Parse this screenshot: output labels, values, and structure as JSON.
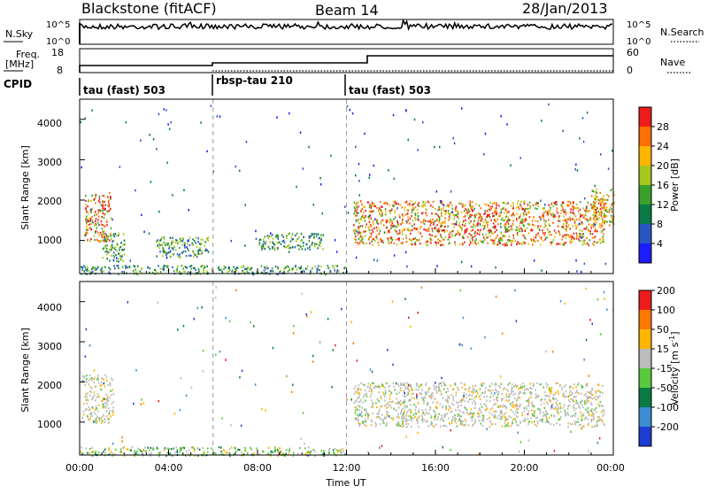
{
  "header": {
    "station": "Blackstone (fitACF)",
    "beam": "Beam 14",
    "date": "28/Jan/2013"
  },
  "nsky_panel": {
    "label": "N.Sky",
    "left_ticks": [
      "10^5",
      "10^0"
    ],
    "right_label": "N.Search",
    "right_ticks": [
      "10^5",
      "10^0"
    ]
  },
  "freq_panel": {
    "label_line1": "Freq.",
    "label_line2": "[MHz]",
    "left_ticks": [
      "18",
      "8"
    ],
    "right_label": "Nave",
    "right_ticks": [
      "60",
      "0"
    ]
  },
  "cpid": {
    "label": "CPID",
    "segments": [
      {
        "start_hour": 0,
        "name": "tau (fast) 503"
      },
      {
        "start_hour": 6,
        "name": "rbsp-tau 210"
      },
      {
        "start_hour": 12,
        "name": "tau (fast) 503"
      }
    ]
  },
  "chart_data": [
    {
      "type": "heatmap",
      "title": "",
      "xlabel": "",
      "ylabel": "Slant Range [km]",
      "x_range_hours": [
        0,
        24
      ],
      "ylim": [
        180,
        4500
      ],
      "y_ticks": [
        "1000",
        "2000",
        "3000",
        "4000"
      ],
      "colorbar": {
        "label": "Power [dB]",
        "ticks": [
          "4",
          "8",
          "12",
          "16",
          "20",
          "24",
          "28"
        ],
        "colors": [
          "#1c1cff",
          "#2857c0",
          "#0a7a46",
          "#3aa02c",
          "#a6c81e",
          "#ffb400",
          "#ff6e00",
          "#ee1c1c"
        ]
      },
      "bands": [
        {
          "from_hour": 0.2,
          "to_hour": 1.4,
          "from_km": 1000,
          "to_km": 2200,
          "level": "high"
        },
        {
          "from_hour": 1.0,
          "to_hour": 2.0,
          "from_km": 500,
          "to_km": 1200,
          "level": "low"
        },
        {
          "from_hour": 3.4,
          "to_hour": 5.8,
          "from_km": 600,
          "to_km": 1100,
          "level": "low"
        },
        {
          "from_hour": 8.0,
          "to_hour": 11.0,
          "from_km": 800,
          "to_km": 1200,
          "level": "low"
        },
        {
          "from_hour": 0,
          "to_hour": 12.0,
          "from_km": 180,
          "to_km": 400,
          "level": "low"
        },
        {
          "from_hour": 12.3,
          "to_hour": 23.6,
          "from_km": 900,
          "to_km": 2000,
          "level": "high"
        },
        {
          "from_hour": 23.0,
          "to_hour": 24.0,
          "from_km": 1400,
          "to_km": 2300,
          "level": "mid"
        }
      ]
    },
    {
      "type": "heatmap",
      "title": "",
      "xlabel": "Time UT",
      "ylabel": "Slant Range [km]",
      "x_range_hours": [
        0,
        24
      ],
      "x_ticks": [
        "00:00",
        "04:00",
        "08:00",
        "12:00",
        "16:00",
        "20:00",
        "00:00"
      ],
      "ylim": [
        180,
        4500
      ],
      "y_ticks": [
        "1000",
        "2000",
        "3000",
        "4000"
      ],
      "colorbar": {
        "label_main": "Velocity ",
        "label_unit": "[m s",
        "label_exp": "-1",
        "label_close": "]",
        "ticks": [
          "200",
          "100",
          "50",
          "15",
          "-15",
          "-50",
          "-100",
          "-200"
        ],
        "colors": [
          "#1c3cd2",
          "#3c8cd2",
          "#0a7a46",
          "#5ac83c",
          "#bcbcbc",
          "#ffb400",
          "#ff7800",
          "#ee1c1c"
        ]
      },
      "bands": [
        {
          "from_hour": 0.1,
          "to_hour": 1.5,
          "from_km": 1000,
          "to_km": 2200,
          "level": "zero"
        },
        {
          "from_hour": 12.3,
          "to_hour": 23.6,
          "from_km": 900,
          "to_km": 2000,
          "level": "zero"
        },
        {
          "from_hour": 0,
          "to_hour": 12.0,
          "from_km": 180,
          "to_km": 400,
          "level": "green"
        }
      ]
    }
  ]
}
